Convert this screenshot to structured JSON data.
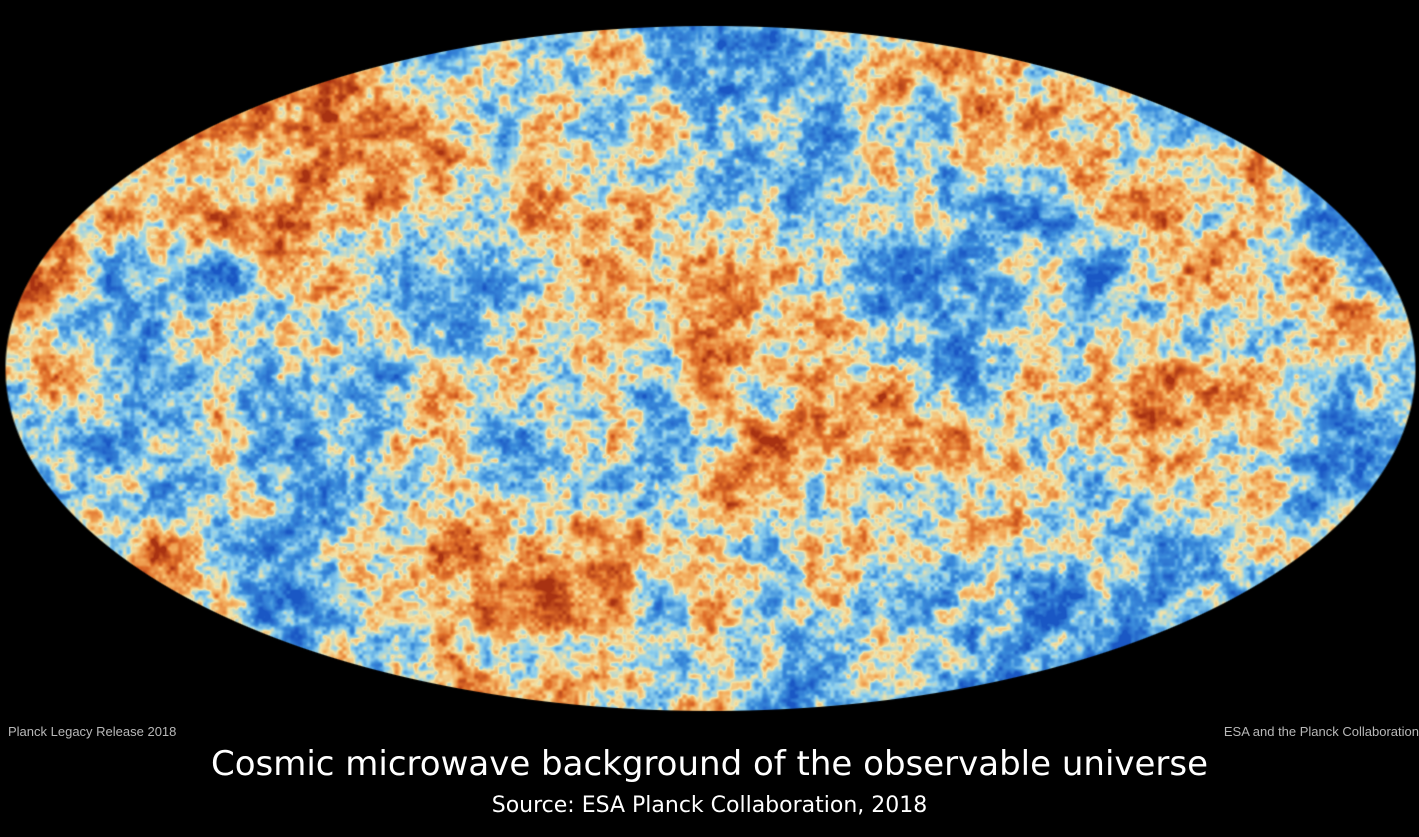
{
  "map": {
    "projection": "mollweide",
    "subject": "cosmic microwave background temperature fluctuations",
    "colors": {
      "background": "#000000",
      "cold_deep": "#1a57c4",
      "cold": "#3d8fdc",
      "cool": "#8ed0ee",
      "neutral": "#f3e3a8",
      "warm": "#f4b060",
      "hot": "#e0702a",
      "hot_deep": "#a83212"
    }
  },
  "credits": {
    "left": "Planck Legacy Release 2018",
    "right": "ESA and the Planck Collaboration"
  },
  "caption": {
    "title": "Cosmic microwave background of the observable universe",
    "source": "Source: ESA Planck Collaboration, 2018"
  }
}
